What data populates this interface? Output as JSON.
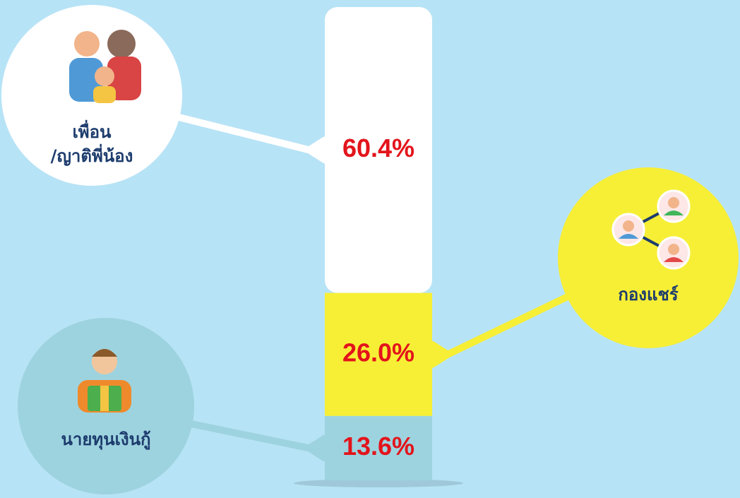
{
  "chart_data": {
    "type": "stacked_bar",
    "categories": [
      "เพื่อน\n/ญาติพี่น้อง",
      "กองแชร์",
      "นายทุนเงินกู้"
    ],
    "values": [
      60.4,
      26.0,
      13.6
    ],
    "value_labels": [
      "60.4%",
      "26.0%",
      "13.6%"
    ],
    "colors": [
      "#ffffff",
      "#f7ef36",
      "#9dd3df"
    ]
  }
}
